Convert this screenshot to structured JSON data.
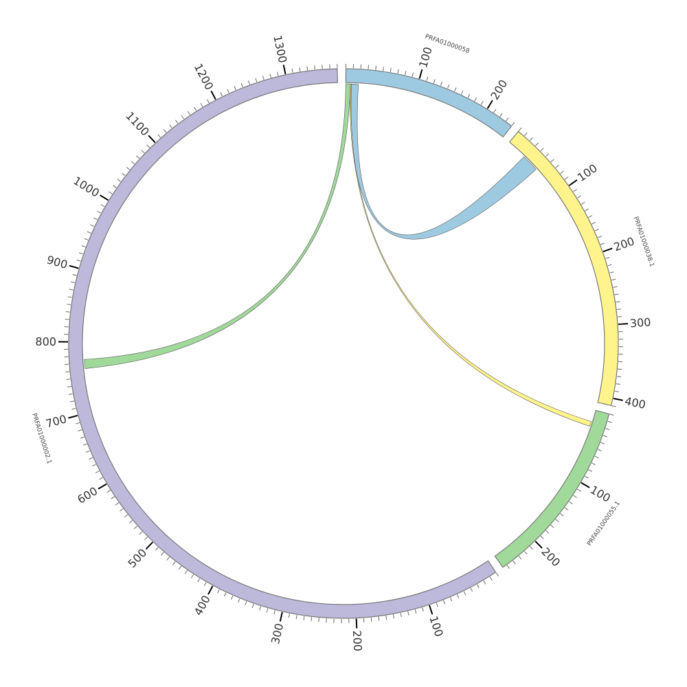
{
  "chart_data": {
    "type": "chord",
    "tick_interval": 10,
    "label_interval": 100,
    "segments": [
      {
        "name": "PRFA01000058",
        "length": 240,
        "color": "#9ecae1"
      },
      {
        "name": "PRFA01000038.1",
        "length": 410,
        "color": "#fff48c"
      },
      {
        "name": "PRFA01000055.1",
        "length": 256,
        "color": "#a1d99b"
      },
      {
        "name": "PRFA01000002.1",
        "length": 1370,
        "color": "#bcb9da"
      }
    ],
    "links": [
      {
        "source": "PRFA01000058",
        "source_start": 0,
        "source_end": 6.5,
        "target": "PRFA01000002.1",
        "target_start": 762,
        "target_end": 775,
        "color": "#a1d99b"
      },
      {
        "source": "PRFA01000058",
        "source_start": 6,
        "source_end": 7.5,
        "target": "PRFA01000055.1",
        "target_start": 17,
        "target_end": 24,
        "color": "#fff48c"
      },
      {
        "source": "PRFA01000058",
        "source_start": 8,
        "source_end": 18,
        "target": "PRFA01000038.1",
        "target_start": 29,
        "target_end": 54,
        "color": "#9ecae1"
      }
    ]
  }
}
